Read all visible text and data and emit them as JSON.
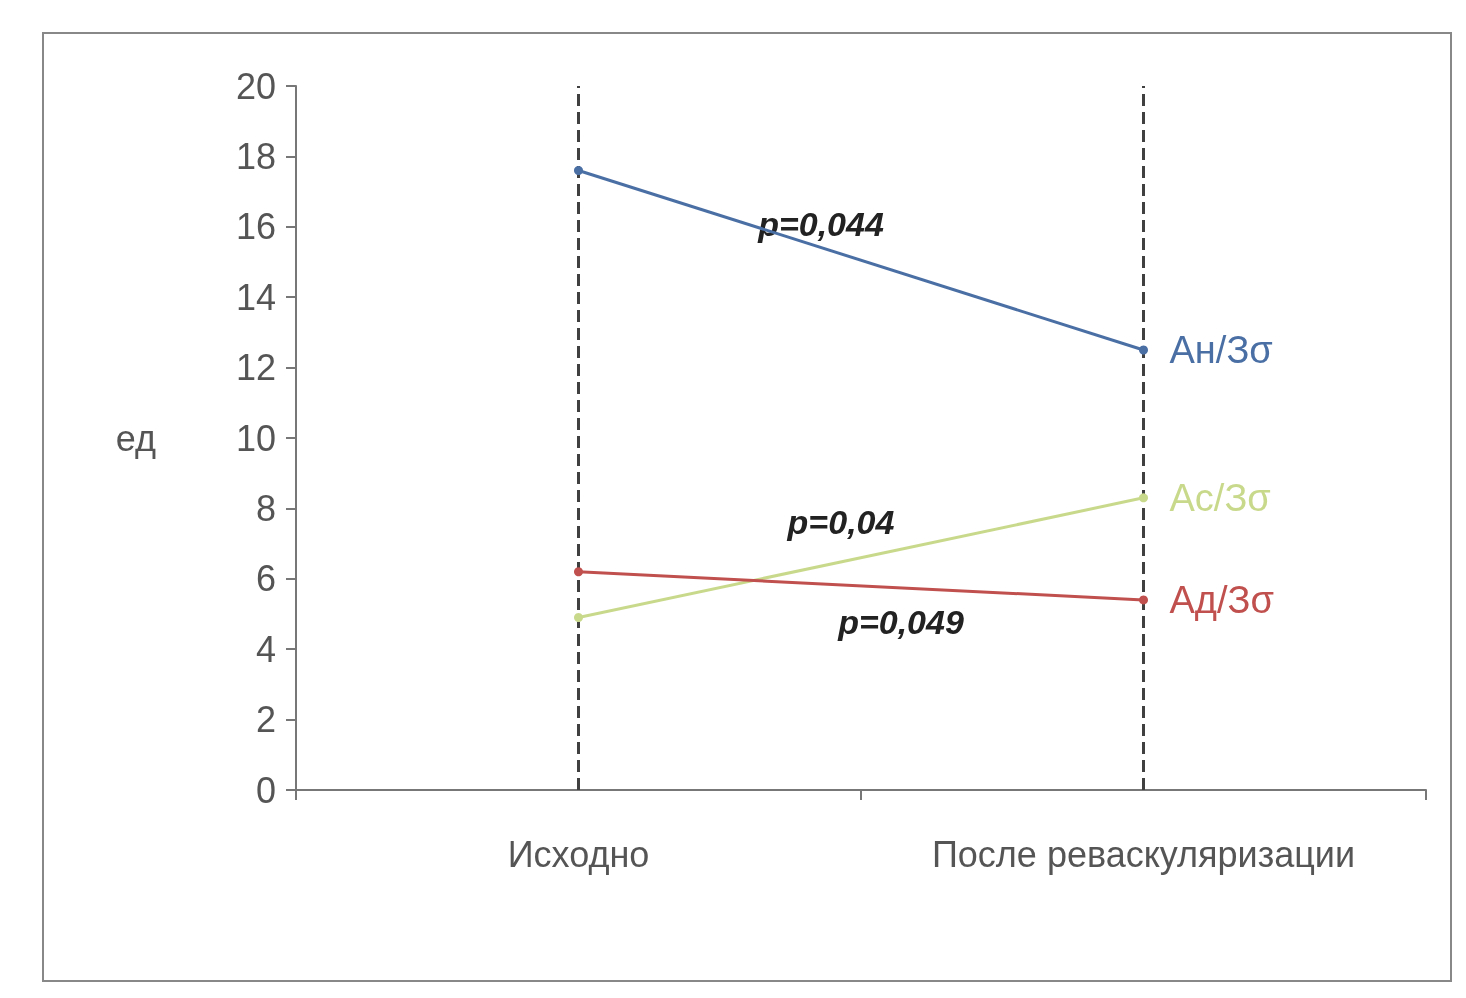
{
  "chart_data": {
    "type": "line",
    "ylabel": "ед",
    "categories": [
      "Исходно",
      "После реваскуляризации"
    ],
    "series": [
      {
        "name": "Ан/Зσ",
        "color": "#4a6fa5",
        "values": [
          17.6,
          12.5
        ]
      },
      {
        "name": "Ас/Зσ",
        "color": "#c9d98c",
        "values": [
          4.9,
          8.3
        ]
      },
      {
        "name": "Ад/Зσ",
        "color": "#c0504d",
        "values": [
          6.2,
          5.4
        ]
      }
    ],
    "ylim": [
      0,
      20
    ],
    "yticks": [
      0,
      2,
      4,
      6,
      8,
      10,
      12,
      14,
      16,
      18,
      20
    ],
    "ref_lines": [
      {
        "axis": "x",
        "value": "Исходно",
        "color": "#404040",
        "line_style": "dashed"
      },
      {
        "axis": "x",
        "value": "После реваскуляризации",
        "color": "#404040",
        "line_style": "dashed"
      }
    ],
    "annotations": [
      "p=0,044",
      "p=0,04",
      "p=0,049"
    ],
    "marker": "circle",
    "line_style": "solid",
    "grid": false,
    "legend": false
  }
}
